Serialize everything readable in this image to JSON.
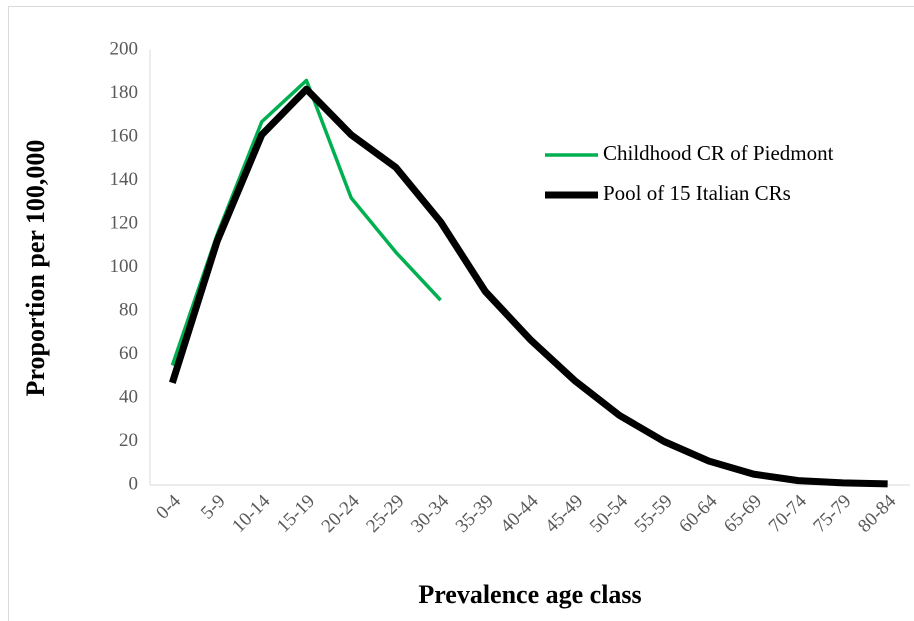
{
  "chart_data": {
    "type": "line",
    "x_label": "Prevalence age class",
    "y_label": "Proportion per 100,000",
    "categories": [
      "0-4",
      "5-9",
      "10-14",
      "15-19",
      "20-24",
      "25-29",
      "30-34",
      "35-39",
      "40-44",
      "45-49",
      "50-54",
      "55-59",
      "60-64",
      "65-69",
      "70-74",
      "75-79",
      "80-84"
    ],
    "series": [
      {
        "name": "Childhood CR of Piedmont",
        "color": "#00b050",
        "values": [
          55,
          115,
          167,
          186,
          132,
          107,
          85,
          null,
          null,
          null,
          null,
          null,
          null,
          null,
          null,
          null,
          null
        ]
      },
      {
        "name": "Pool of 15 Italian CRs",
        "color": "#000000",
        "values": [
          47,
          112,
          161,
          182,
          161,
          146,
          121,
          89,
          67,
          48,
          32,
          20,
          11,
          5,
          2,
          1,
          0.5
        ]
      }
    ],
    "ylim": [
      0,
      200
    ],
    "yticks": [
      0,
      20,
      40,
      60,
      80,
      100,
      120,
      140,
      160,
      180,
      200
    ],
    "grid": false
  }
}
